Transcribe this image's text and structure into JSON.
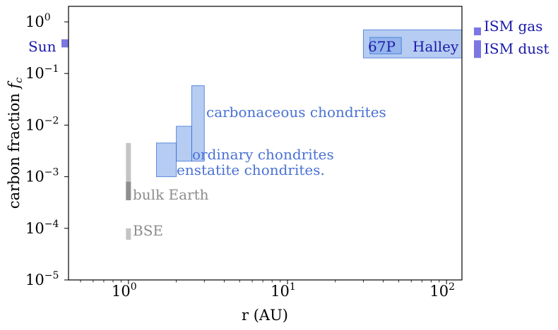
{
  "chart_data": {
    "type": "bar",
    "title": "",
    "xlabel": "r (AU)",
    "ylabel": "carbon fraction f_c",
    "ylabel_parts": {
      "main": "carbon fraction ",
      "symbol": "f",
      "sub": "c"
    },
    "x_scale": "log",
    "y_scale": "log",
    "xlim": [
      0.42,
      125
    ],
    "ylim": [
      1e-05,
      2
    ],
    "x_ticks": [
      {
        "value": 1,
        "base": "10",
        "exp": "0"
      },
      {
        "value": 10,
        "base": "10",
        "exp": "1"
      },
      {
        "value": 100,
        "base": "10",
        "exp": "2"
      }
    ],
    "y_ticks": [
      {
        "value": 1e-05,
        "base": "10",
        "exp": "−5"
      },
      {
        "value": 0.0001,
        "base": "10",
        "exp": "−4"
      },
      {
        "value": 0.001,
        "base": "10",
        "exp": "−3"
      },
      {
        "value": 0.01,
        "base": "10",
        "exp": "−2"
      },
      {
        "value": 0.1,
        "base": "10",
        "exp": "−1"
      },
      {
        "value": 1,
        "base": "10",
        "exp": "0"
      }
    ],
    "grid": false,
    "colors": {
      "blue_fill": "#6d99e6",
      "blue_edge": "#3f74d6",
      "blue_text": "#4a72d4",
      "purple": "#7b78e3",
      "navy_text": "#1a1aa8",
      "grey_light": "#c4c4c4",
      "grey_dark": "#8f8f8f",
      "grey_text": "#8c8c8c"
    },
    "regions": [
      {
        "name": "enstatite chondrites.",
        "x": [
          1.5,
          2.0
        ],
        "y": [
          0.001,
          0.0045
        ],
        "kind": "blue"
      },
      {
        "name": "ordinary chondrites",
        "x": [
          2.0,
          2.5
        ],
        "y": [
          0.002,
          0.0095
        ],
        "kind": "blue"
      },
      {
        "name": "carbonaceous chondrites",
        "x": [
          2.5,
          3.0
        ],
        "y": [
          0.002,
          0.058
        ],
        "kind": "blue"
      },
      {
        "name": "Halley",
        "x": [
          30,
          125
        ],
        "y": [
          0.2,
          0.7
        ],
        "kind": "blue"
      },
      {
        "name": "67P",
        "x": [
          33,
          52
        ],
        "y": [
          0.24,
          0.5
        ],
        "kind": "blue-inner"
      },
      {
        "name": "bulk Earth",
        "x": [
          1.0,
          1.0
        ],
        "y": [
          0.00035,
          0.0045
        ],
        "kind": "grey-bar"
      },
      {
        "name": "bulk Earth core",
        "x": [
          1.0,
          1.0
        ],
        "y": [
          0.00035,
          0.0008
        ],
        "kind": "grey-dark-bar"
      },
      {
        "name": "BSE",
        "x": [
          1.0,
          1.0
        ],
        "y": [
          6e-05,
          0.0001
        ],
        "kind": "grey-bar"
      },
      {
        "name": "Sun",
        "x": [
          0.42,
          0.42
        ],
        "y": [
          0.32,
          0.46
        ],
        "kind": "edge-marker"
      }
    ],
    "annotations": {
      "carbonaceous": "carbonaceous chondrites",
      "ordinary": "ordinary chondrites",
      "enstatite": "enstatite chondrites.",
      "bulk_earth": "bulk Earth",
      "bse": "BSE",
      "sun": "Sun",
      "halley": "Halley",
      "p67": "67P",
      "ism_gas": "ISM gas",
      "ism_dust": "ISM dust"
    },
    "outside_markers": [
      {
        "name": "ISM gas",
        "y": [
          0.55,
          0.78
        ]
      },
      {
        "name": "ISM dust",
        "y": [
          0.2,
          0.44
        ]
      }
    ]
  }
}
